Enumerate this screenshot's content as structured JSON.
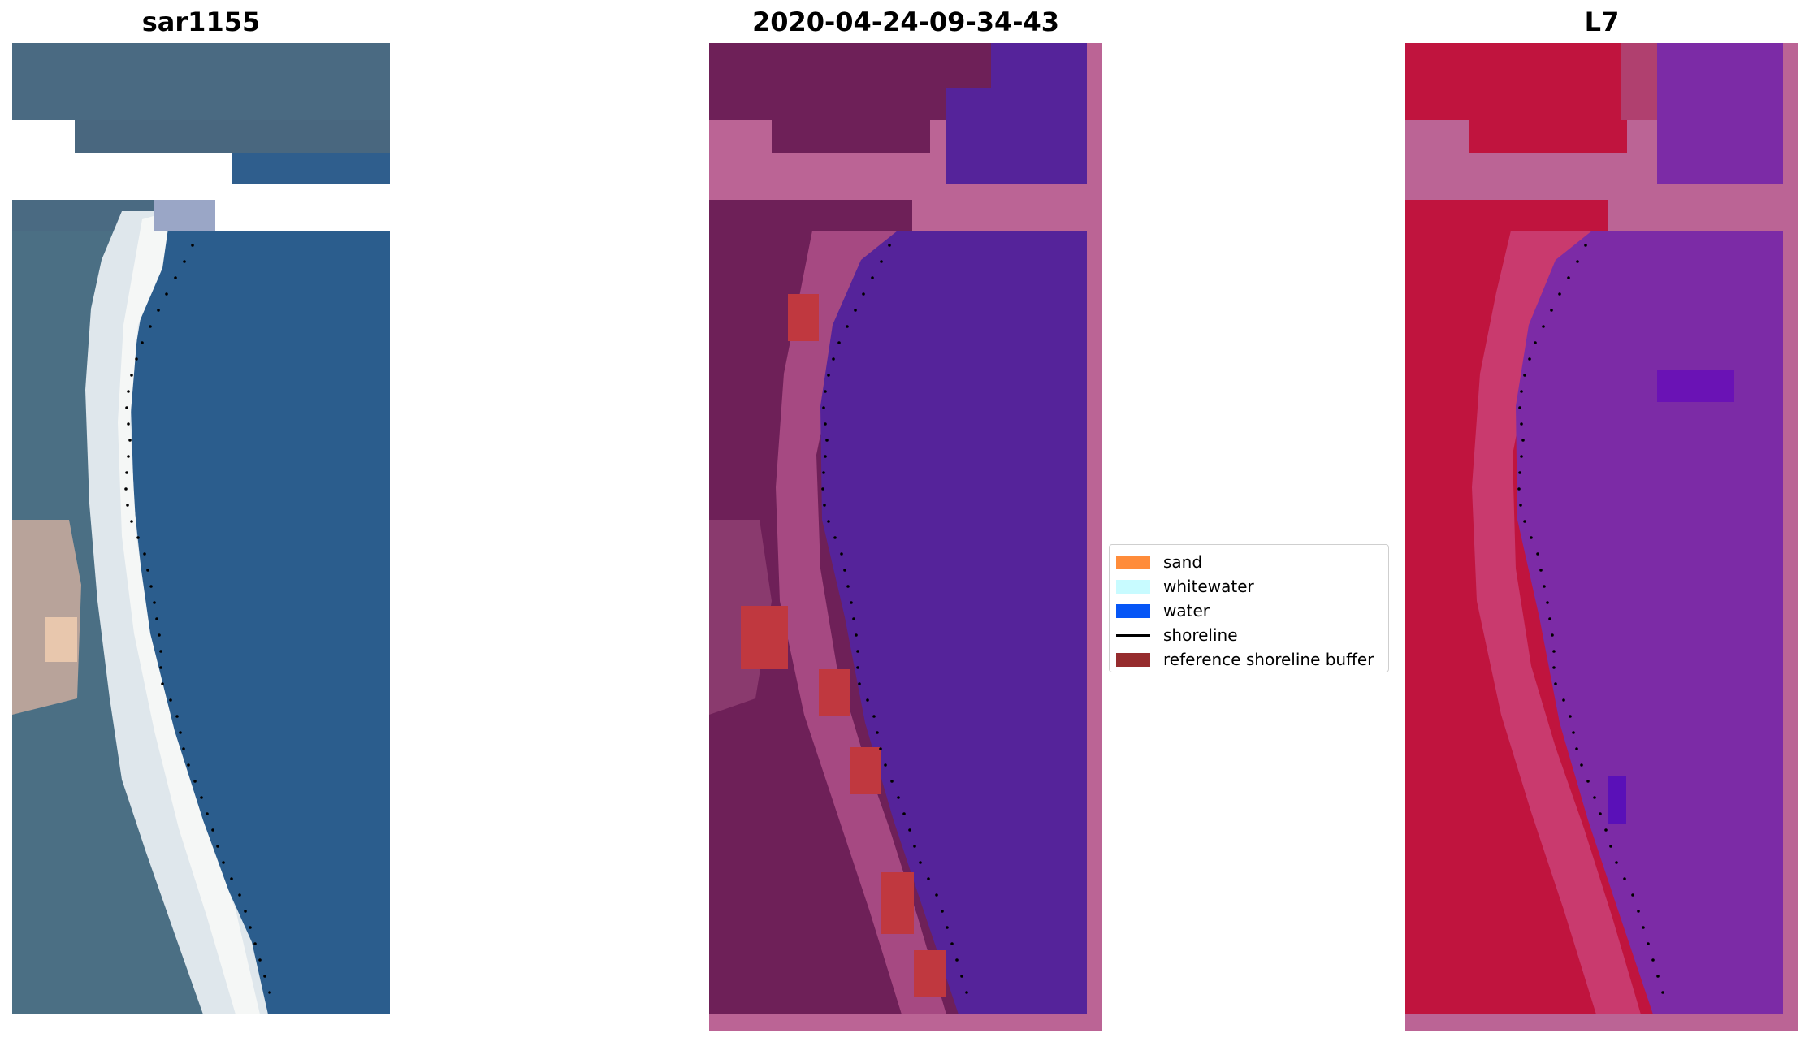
{
  "panels": [
    {
      "title": "sar1155"
    },
    {
      "title": "2020-04-24-09-34-43"
    },
    {
      "title": "L7"
    }
  ],
  "legend": {
    "items": [
      {
        "label": "sand",
        "color": "#ff8c3a",
        "kind": "patch"
      },
      {
        "label": "whitewater",
        "color": "#c8fbff",
        "kind": "patch"
      },
      {
        "label": "water",
        "color": "#0656f6",
        "kind": "patch"
      },
      {
        "label": "shoreline",
        "color": "#000000",
        "kind": "line"
      },
      {
        "label": "reference shoreline buffer",
        "color": "#962c2e",
        "kind": "patch"
      }
    ]
  },
  "colors": {
    "rgb_water": "#2b5d8d",
    "rgb_beach": "#dfe7ec",
    "class_land": "#6e2058",
    "class_water": "#55239a",
    "class_nodata": "#bb6495",
    "ndwi_land": "#c0143e",
    "ndwi_water": "#7c2ba6",
    "buffer": "#c0383f"
  }
}
